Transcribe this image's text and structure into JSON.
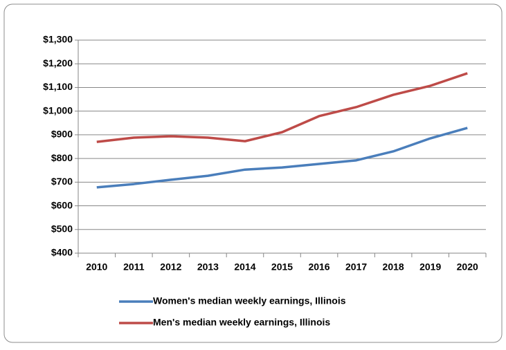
{
  "chart_data": {
    "type": "line",
    "categories": [
      "2010",
      "2011",
      "2012",
      "2013",
      "2014",
      "2015",
      "2016",
      "2017",
      "2018",
      "2019",
      "2020"
    ],
    "series": [
      {
        "name": "Women's median weekly earnings, Illinois",
        "color": "#4a7ebb",
        "values": [
          678,
          692,
          710,
          727,
          753,
          762,
          777,
          792,
          830,
          885,
          929
        ]
      },
      {
        "name": "Men's median weekly earnings, Illinois",
        "color": "#be4b48",
        "values": [
          870,
          888,
          894,
          888,
          873,
          911,
          979,
          1017,
          1069,
          1107,
          1160
        ]
      }
    ],
    "ylim": [
      400,
      1300
    ],
    "yticks": [
      {
        "value": 400,
        "label": "$400"
      },
      {
        "value": 500,
        "label": "$500"
      },
      {
        "value": 600,
        "label": "$600"
      },
      {
        "value": 700,
        "label": "$700"
      },
      {
        "value": 800,
        "label": "$800"
      },
      {
        "value": 900,
        "label": "$900"
      },
      {
        "value": 1000,
        "label": "$1,000"
      },
      {
        "value": 1100,
        "label": "$1,100"
      },
      {
        "value": 1200,
        "label": "$1,200"
      },
      {
        "value": 1300,
        "label": "$1,300"
      }
    ],
    "grid": true
  }
}
